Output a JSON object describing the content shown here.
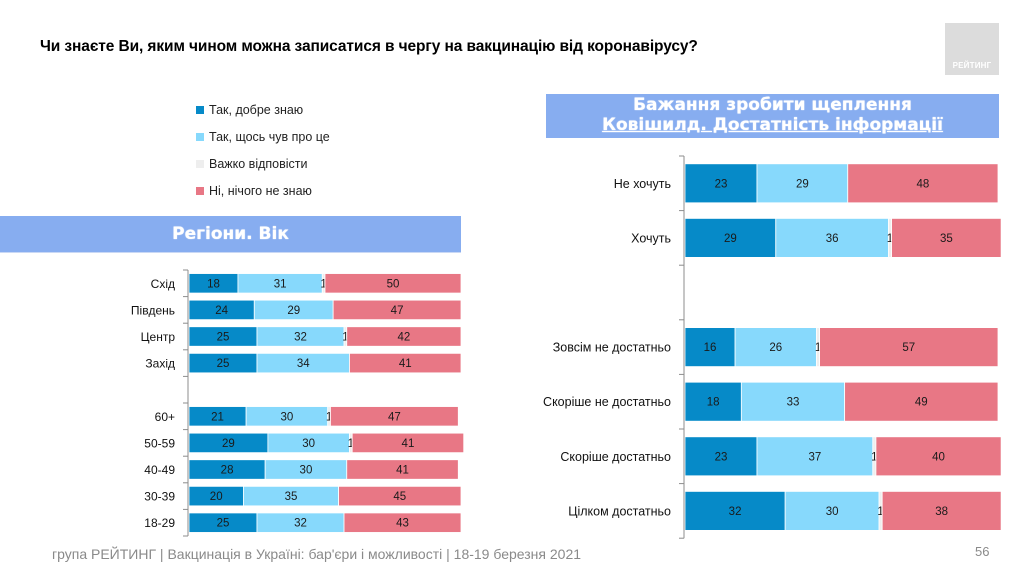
{
  "header": {
    "title": "Чи знаєте Ви, яким чином можна записатися в чергу на вакцинацію від коронавірусу?",
    "logo_text": "РЕЙТИНГ"
  },
  "legend": [
    {
      "label": "Так, добре знаю",
      "color": "#068ac8"
    },
    {
      "label": "Так, щось чув про це",
      "color": "#87d9fc"
    },
    {
      "label": "Важко відповісти",
      "color": "#eeeeee"
    },
    {
      "label": "Ні, нічого не знаю",
      "color": "#e87785"
    }
  ],
  "banners": {
    "left": "Регіони. Вік",
    "right_line1": "Бажання зробити щеплення",
    "right_line2": "Ковішилд. Достатність інформації"
  },
  "footer": {
    "text": "група РЕЙТИНГ | Вакцинація в Україні: бар'єри і можливості | 18-19 березня 2021",
    "page": "56"
  },
  "chart_data": [
    {
      "type": "bar",
      "orientation": "horizontal",
      "stacked": true,
      "title": "Регіони. Вік",
      "categories": [
        "Схід",
        "Південь",
        "Центр",
        "Захід",
        "",
        "60+",
        "50-59",
        "40-49",
        "30-39",
        "18-29"
      ],
      "series": [
        {
          "name": "Так, добре знаю",
          "color": "#068ac8",
          "values": [
            18,
            24,
            25,
            25,
            null,
            21,
            29,
            28,
            20,
            25
          ]
        },
        {
          "name": "Так, щось чув про це",
          "color": "#87d9fc",
          "values": [
            31,
            29,
            32,
            34,
            null,
            30,
            30,
            30,
            35,
            32
          ]
        },
        {
          "name": "Важко відповісти",
          "color": "#eeeeee",
          "values": [
            1,
            0,
            1,
            0,
            null,
            1,
            1,
            0,
            0,
            0
          ]
        },
        {
          "name": "Ні, нічого не знаю",
          "color": "#e87785",
          "values": [
            50,
            47,
            42,
            41,
            null,
            47,
            41,
            41,
            45,
            43
          ]
        }
      ],
      "xlim": [
        0,
        100
      ],
      "legend": "top"
    },
    {
      "type": "bar",
      "orientation": "horizontal",
      "stacked": true,
      "title": "Бажання зробити щеплення Ковішилд. Достатність інформації",
      "categories": [
        "Не хочуть",
        "Хочуть",
        "",
        "Зовсім не достатньо",
        "Скоріше не достатньо",
        "Скоріше достатньо",
        "Цілком достатньо"
      ],
      "series": [
        {
          "name": "Так, добре знаю",
          "color": "#068ac8",
          "values": [
            23,
            29,
            null,
            16,
            18,
            23,
            32
          ]
        },
        {
          "name": "Так, щось чув про це",
          "color": "#87d9fc",
          "values": [
            29,
            36,
            null,
            26,
            33,
            37,
            30
          ]
        },
        {
          "name": "Важко відповісти",
          "color": "#eeeeee",
          "values": [
            0,
            1,
            null,
            1,
            0,
            1,
            1
          ]
        },
        {
          "name": "Ні, нічого не знаю",
          "color": "#e87785",
          "values": [
            48,
            35,
            null,
            57,
            49,
            40,
            38
          ]
        }
      ],
      "xlim": [
        0,
        100
      ],
      "legend": "top"
    }
  ]
}
